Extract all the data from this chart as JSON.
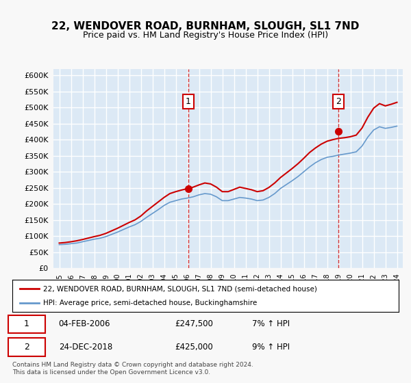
{
  "title": "22, WENDOVER ROAD, BURNHAM, SLOUGH, SL1 7ND",
  "subtitle": "Price paid vs. HM Land Registry's House Price Index (HPI)",
  "legend_label_red": "22, WENDOVER ROAD, BURNHAM, SLOUGH, SL1 7ND (semi-detached house)",
  "legend_label_blue": "HPI: Average price, semi-detached house, Buckinghamshire",
  "annotation1_label": "1",
  "annotation1_date": "04-FEB-2006",
  "annotation1_price": "£247,500",
  "annotation1_hpi": "7% ↑ HPI",
  "annotation2_label": "2",
  "annotation2_date": "24-DEC-2018",
  "annotation2_price": "£425,000",
  "annotation2_hpi": "9% ↑ HPI",
  "footnote": "Contains HM Land Registry data © Crown copyright and database right 2024.\nThis data is licensed under the Open Government Licence v3.0.",
  "background_color": "#dce9f5",
  "plot_bg_color": "#dce9f5",
  "red_color": "#cc0000",
  "blue_color": "#6699cc",
  "grid_color": "#ffffff",
  "ylim": [
    0,
    620000
  ],
  "yticks": [
    0,
    50000,
    100000,
    150000,
    200000,
    250000,
    300000,
    350000,
    400000,
    450000,
    500000,
    550000,
    600000
  ],
  "sale1_year": 2006.09,
  "sale1_value": 247500,
  "sale2_year": 2018.98,
  "sale2_value": 425000,
  "hpi_years": [
    1995,
    1995.5,
    1996,
    1996.5,
    1997,
    1997.5,
    1998,
    1998.5,
    1999,
    1999.5,
    2000,
    2000.5,
    2001,
    2001.5,
    2002,
    2002.5,
    2003,
    2003.5,
    2004,
    2004.5,
    2005,
    2005.5,
    2006,
    2006.5,
    2007,
    2007.5,
    2008,
    2008.5,
    2009,
    2009.5,
    2010,
    2010.5,
    2011,
    2011.5,
    2012,
    2012.5,
    2013,
    2013.5,
    2014,
    2014.5,
    2015,
    2015.5,
    2016,
    2016.5,
    2017,
    2017.5,
    2018,
    2018.5,
    2019,
    2019.5,
    2020,
    2020.5,
    2021,
    2021.5,
    2022,
    2022.5,
    2023,
    2023.5,
    2024
  ],
  "hpi_values": [
    73000,
    74000,
    76000,
    78000,
    82000,
    86000,
    90000,
    93000,
    98000,
    105000,
    112000,
    120000,
    128000,
    135000,
    145000,
    158000,
    170000,
    182000,
    195000,
    205000,
    210000,
    215000,
    218000,
    222000,
    228000,
    232000,
    230000,
    222000,
    210000,
    210000,
    215000,
    220000,
    218000,
    215000,
    210000,
    212000,
    220000,
    232000,
    248000,
    260000,
    272000,
    285000,
    300000,
    315000,
    328000,
    338000,
    345000,
    348000,
    352000,
    355000,
    358000,
    362000,
    380000,
    408000,
    430000,
    440000,
    435000,
    438000,
    442000
  ],
  "red_years": [
    1995,
    1995.5,
    1996,
    1996.5,
    1997,
    1997.5,
    1998,
    1998.5,
    1999,
    1999.5,
    2000,
    2000.5,
    2001,
    2001.5,
    2002,
    2002.5,
    2003,
    2003.5,
    2004,
    2004.5,
    2005,
    2005.5,
    2006,
    2006.5,
    2007,
    2007.5,
    2008,
    2008.5,
    2009,
    2009.5,
    2010,
    2010.5,
    2011,
    2011.5,
    2012,
    2012.5,
    2013,
    2013.5,
    2014,
    2014.5,
    2015,
    2015.5,
    2016,
    2016.5,
    2017,
    2017.5,
    2018,
    2018.5,
    2019,
    2019.5,
    2020,
    2020.5,
    2021,
    2021.5,
    2022,
    2022.5,
    2023,
    2023.5,
    2024
  ],
  "red_values": [
    78000,
    79500,
    82000,
    85000,
    89000,
    93500,
    98000,
    102000,
    108000,
    116000,
    124000,
    133000,
    142000,
    150000,
    162000,
    178000,
    192000,
    206000,
    220000,
    232000,
    238000,
    243000,
    247500,
    252000,
    259000,
    265000,
    262000,
    252000,
    238000,
    238000,
    245000,
    252000,
    248000,
    244000,
    238000,
    241000,
    251000,
    265000,
    282000,
    296000,
    310000,
    325000,
    342000,
    360000,
    374000,
    386000,
    395000,
    400000,
    404000,
    406000,
    409000,
    414000,
    436000,
    470000,
    498000,
    512000,
    505000,
    510000,
    516000
  ]
}
